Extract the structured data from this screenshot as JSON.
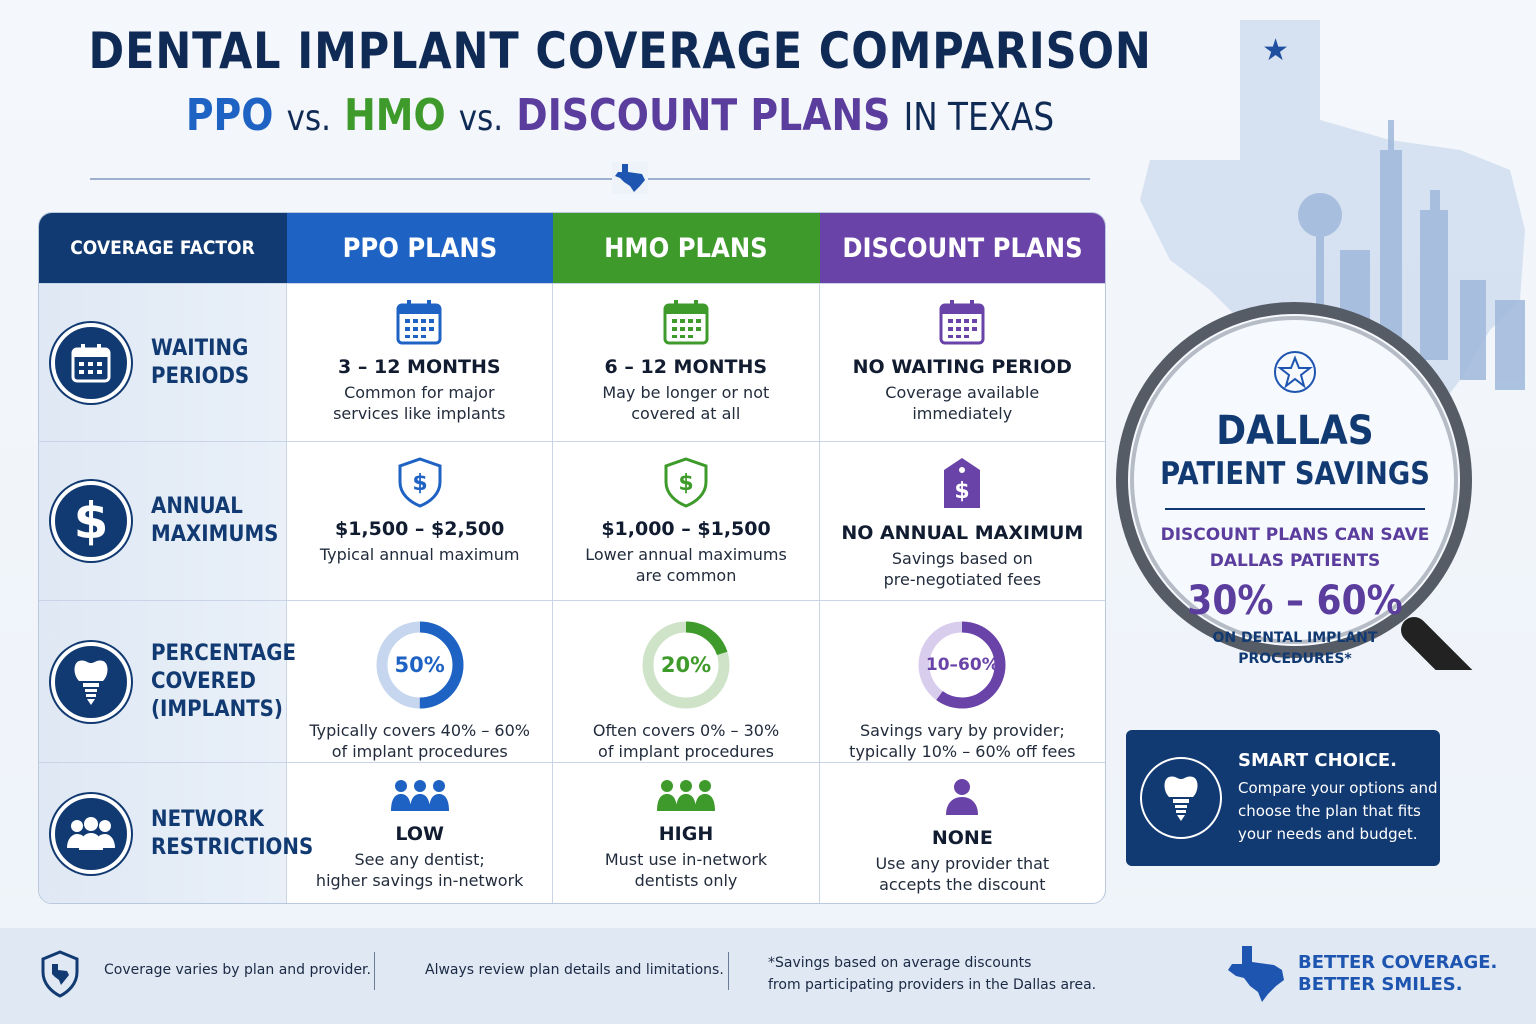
{
  "header": {
    "title": "DENTAL IMPLANT COVERAGE COMPARISON",
    "subtitle_ppo": "PPO",
    "subtitle_vs": "vs.",
    "subtitle_hmo": "HMO",
    "subtitle_discount": "DISCOUNT PLANS",
    "subtitle_tail": "IN TEXAS"
  },
  "table": {
    "headers": {
      "factor": "COVERAGE FACTOR",
      "ppo": "PPO PLANS",
      "hmo": "HMO PLANS",
      "discount": "DISCOUNT PLANS"
    },
    "rows": [
      {
        "factor_line1": "WAITING",
        "factor_line2": "PERIODS",
        "factor_line3": "",
        "icon": "calendar-icon",
        "ppo": {
          "value": "3 – 12 MONTHS",
          "desc1": "Common for major",
          "desc2": "services like implants"
        },
        "hmo": {
          "value": "6 – 12 MONTHS",
          "desc1": "May be longer or not",
          "desc2": "covered at all"
        },
        "discount": {
          "value": "NO WAITING PERIOD",
          "desc1": "Coverage available",
          "desc2": "immediately"
        }
      },
      {
        "factor_line1": "ANNUAL",
        "factor_line2": "MAXIMUMS",
        "factor_line3": "",
        "icon": "dollar-icon",
        "ppo": {
          "value": "$1,500 – $2,500",
          "desc1": "Typical annual maximum",
          "desc2": ""
        },
        "hmo": {
          "value": "$1,000 – $1,500",
          "desc1": "Lower annual maximums",
          "desc2": "are common"
        },
        "discount": {
          "value": "NO ANNUAL MAXIMUM",
          "desc1": "Savings based on",
          "desc2": "pre-negotiated fees"
        }
      },
      {
        "factor_line1": "PERCENTAGE",
        "factor_line2": "COVERED",
        "factor_line3": "(IMPLANTS)",
        "icon": "tooth-implant-icon",
        "ppo": {
          "value": "50%",
          "fill": 0.5,
          "desc1": "Typically covers 40% – 60%",
          "desc2": "of implant procedures"
        },
        "hmo": {
          "value": "20%",
          "fill": 0.2,
          "desc1": "Often covers 0% – 30%",
          "desc2": "of implant procedures"
        },
        "discount": {
          "value": "10–60%",
          "fill": 0.6,
          "desc1": "Savings vary by provider;",
          "desc2": "typically 10% – 60% off fees"
        }
      },
      {
        "factor_line1": "NETWORK",
        "factor_line2": "RESTRICTIONS",
        "factor_line3": "",
        "icon": "people-icon",
        "ppo": {
          "value": "LOW",
          "desc1": "See any dentist;",
          "desc2": "higher savings in-network"
        },
        "hmo": {
          "value": "HIGH",
          "desc1": "Must use in-network",
          "desc2": "dentists only"
        },
        "discount": {
          "value": "NONE",
          "desc1": "Use any provider that",
          "desc2": "accepts the discount"
        }
      }
    ]
  },
  "magnifier": {
    "city": "DALLAS",
    "subtitle": "PATIENT SAVINGS",
    "pre_line1": "DISCOUNT PLANS CAN SAVE",
    "pre_line2": "DALLAS PATIENTS",
    "percent": "30% – 60%",
    "post_line1": "ON DENTAL IMPLANT",
    "post_line2": "PROCEDURES*"
  },
  "smart_choice": {
    "title": "SMART CHOICE.",
    "line1": "Compare your options and",
    "line2": "choose the plan that fits",
    "line3": "your needs and budget."
  },
  "footer": {
    "note1": "Coverage varies by plan and provider.",
    "note2": "Always review plan details and limitations.",
    "note3_line1": "*Savings based on average discounts",
    "note3_line2": "from participating providers in the Dallas area.",
    "tagline_line1": "BETTER COVERAGE.",
    "tagline_line2": "BETTER SMILES."
  },
  "colors": {
    "navy": "#123a72",
    "ppo_blue": "#1e63c4",
    "hmo_green": "#3e9b2b",
    "discount_purple": "#6a43a8"
  }
}
